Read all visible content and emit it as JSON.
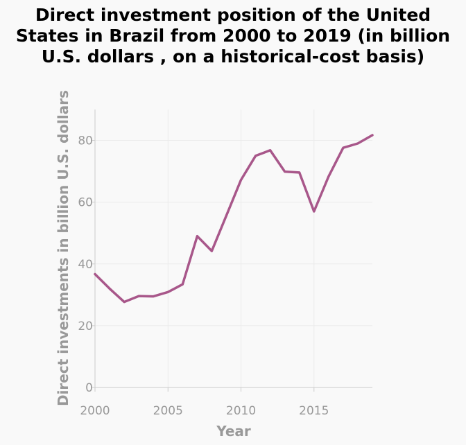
{
  "chart_data": {
    "type": "line",
    "title": "Direct investment position of the United States in Brazil from 2000 to 2019 (in billion U.S. dollars , on a historical-cost basis)",
    "title_lines": [
      "Direct investment position of the United",
      "States in Brazil from 2000 to 2019 (in billion",
      "U.S. dollars , on a historical-cost basis)"
    ],
    "xlabel": "Year",
    "ylabel": "Direct investments in billion U.S. dollars",
    "xlim": [
      2000,
      2019
    ],
    "ylim": [
      0,
      90
    ],
    "x_ticks": [
      2000,
      2005,
      2010,
      2015
    ],
    "y_ticks": [
      0,
      20,
      40,
      60,
      80
    ],
    "grid": true,
    "line_color": "#a8578a",
    "x": [
      2000,
      2001,
      2002,
      2003,
      2004,
      2005,
      2006,
      2007,
      2008,
      2009,
      2010,
      2011,
      2012,
      2013,
      2014,
      2015,
      2016,
      2017,
      2018,
      2019
    ],
    "values": [
      36.7,
      32.0,
      27.7,
      29.6,
      29.5,
      30.9,
      33.4,
      49.0,
      44.2,
      55.7,
      67.2,
      75.0,
      76.8,
      69.9,
      69.6,
      57.0,
      68.3,
      77.6,
      79.0,
      81.7
    ]
  }
}
